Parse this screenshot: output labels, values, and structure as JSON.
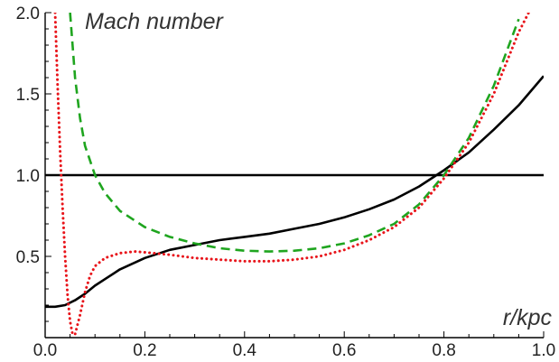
{
  "chart_data": {
    "type": "line",
    "title": "",
    "xlabel": "",
    "ylabel": "",
    "xlim": [
      0.0,
      1.0
    ],
    "ylim": [
      0.0,
      2.0
    ],
    "x_ticks": [
      0.0,
      0.2,
      0.4,
      0.6,
      0.8,
      1.0
    ],
    "x_tick_labels": [
      "0.0",
      "0.2",
      "0.4",
      "0.6",
      "0.8",
      "1.0"
    ],
    "y_ticks": [
      0.5,
      1.0,
      1.5,
      2.0
    ],
    "y_tick_labels": [
      "0.5",
      "1.0",
      "1.5",
      "2.0"
    ],
    "grid": false,
    "legend": "none",
    "annotations": [
      {
        "text": "Mach number",
        "position": "top-left"
      },
      {
        "text": "r/kpc",
        "position": "bottom-right"
      }
    ],
    "series": [
      {
        "style": "solid",
        "color": "#000000",
        "x": [
          0.0,
          0.02,
          0.04,
          0.06,
          0.08,
          0.1,
          0.12,
          0.15,
          0.2,
          0.25,
          0.3,
          0.35,
          0.4,
          0.45,
          0.5,
          0.55,
          0.6,
          0.65,
          0.7,
          0.75,
          0.8,
          0.85,
          0.9,
          0.95,
          1.0
        ],
        "y": [
          0.19,
          0.19,
          0.2,
          0.23,
          0.27,
          0.32,
          0.36,
          0.42,
          0.49,
          0.54,
          0.57,
          0.6,
          0.62,
          0.64,
          0.67,
          0.7,
          0.74,
          0.79,
          0.85,
          0.93,
          1.03,
          1.14,
          1.28,
          1.43,
          1.61
        ]
      },
      {
        "style": "solid",
        "color": "#000000",
        "x": [
          0.0,
          1.0
        ],
        "y": [
          1.0,
          1.0
        ]
      },
      {
        "style": "dashed",
        "color": "#1fa51f",
        "x": [
          0.05,
          0.06,
          0.07,
          0.08,
          0.1,
          0.12,
          0.15,
          0.2,
          0.25,
          0.3,
          0.35,
          0.4,
          0.45,
          0.5,
          0.55,
          0.6,
          0.65,
          0.7,
          0.75,
          0.8,
          0.85,
          0.9,
          0.95
        ],
        "y": [
          2.0,
          1.6,
          1.35,
          1.18,
          1.0,
          0.89,
          0.78,
          0.68,
          0.62,
          0.58,
          0.55,
          0.535,
          0.53,
          0.535,
          0.55,
          0.58,
          0.63,
          0.7,
          0.82,
          1.0,
          1.23,
          1.55,
          1.96
        ]
      },
      {
        "style": "dotted",
        "color": "#e8141a",
        "x": [
          0.02,
          0.025,
          0.03,
          0.035,
          0.04,
          0.045,
          0.05,
          0.055,
          0.06,
          0.07,
          0.08,
          0.09,
          0.1,
          0.12,
          0.15,
          0.18,
          0.2,
          0.25,
          0.3,
          0.35,
          0.4,
          0.45,
          0.5,
          0.55,
          0.6,
          0.65,
          0.7,
          0.75,
          0.8,
          0.85,
          0.9,
          0.95,
          0.97
        ],
        "y": [
          2.0,
          1.55,
          1.15,
          0.8,
          0.5,
          0.26,
          0.1,
          0.02,
          0.02,
          0.14,
          0.28,
          0.38,
          0.44,
          0.49,
          0.52,
          0.53,
          0.525,
          0.51,
          0.49,
          0.48,
          0.47,
          0.47,
          0.48,
          0.5,
          0.54,
          0.6,
          0.68,
          0.8,
          0.98,
          1.2,
          1.5,
          1.88,
          2.0
        ]
      }
    ]
  }
}
